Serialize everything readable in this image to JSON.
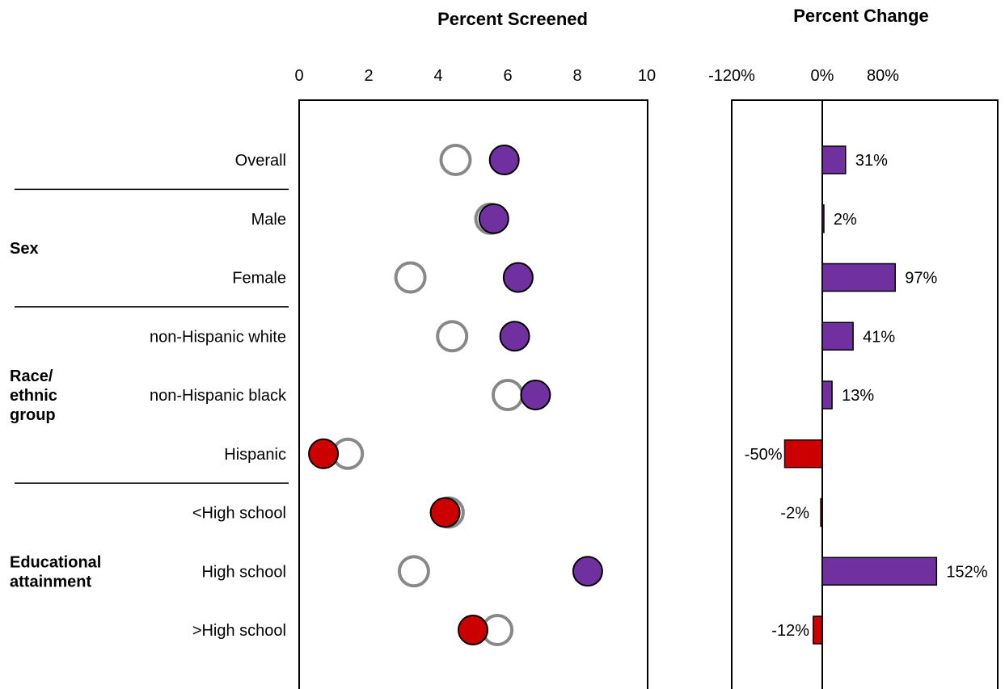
{
  "chart_data": [
    {
      "type": "scatter",
      "title": "Percent Screened",
      "xlabel": "",
      "ylabel": "",
      "xlim": [
        0,
        10
      ],
      "xticks": [
        "0",
        "2",
        "4",
        "6",
        "8",
        "10"
      ],
      "grid": false,
      "categories": [
        "Overall",
        "Male",
        "Female",
        "non-Hispanic white",
        "non-Hispanic black",
        "Hispanic",
        "<High school",
        "High school",
        ">High school"
      ],
      "series": [
        {
          "values": [
            4.5,
            5.5,
            3.2,
            4.4,
            6.0,
            1.4,
            4.3,
            3.3,
            5.7
          ]
        },
        {
          "values": [
            5.9,
            5.6,
            6.3,
            6.2,
            6.8,
            0.7,
            4.2,
            8.3,
            5.0
          ]
        }
      ]
    },
    {
      "type": "bar",
      "orientation": "horizontal",
      "title": "Percent Change",
      "xlabel": "",
      "ylabel": "",
      "xlim": [
        -120,
        230
      ],
      "xticks": [
        "-120%",
        "0%",
        "80%"
      ],
      "categories": [
        "Overall",
        "Male",
        "Female",
        "non-Hispanic white",
        "non-Hispanic black",
        "Hispanic",
        "<High school",
        "High school",
        ">High school"
      ],
      "values": [
        31,
        2,
        97,
        41,
        13,
        -50,
        -2,
        152,
        -12
      ],
      "value_labels": [
        "31%",
        "2%",
        "97%",
        "41%",
        "13%",
        "-50%",
        "-2%",
        "152%",
        "-12%"
      ]
    }
  ],
  "groups": [
    {
      "label_lines": [
        "Sex"
      ],
      "rows": [
        1,
        2
      ]
    },
    {
      "label_lines": [
        "Race/",
        "ethnic",
        "group"
      ],
      "rows": [
        3,
        4,
        5
      ]
    },
    {
      "label_lines": [
        "Educational",
        "attainment"
      ],
      "rows": [
        6,
        7,
        8
      ]
    }
  ],
  "colors": {
    "increase": "#7030a0",
    "decrease": "#cc0000",
    "baseline_ring": "#888888",
    "axis": "#000000"
  }
}
